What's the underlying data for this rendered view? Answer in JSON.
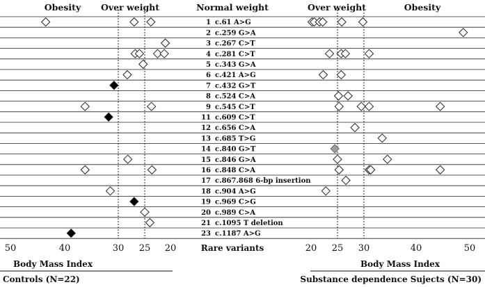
{
  "chart_data": {
    "type": "scatter",
    "headers": {
      "left_obesity": "Obesity",
      "left_overweight": "Over weight",
      "center_normal": "Normal weight",
      "right_overweight": "Over weight",
      "right_obesity": "Obesity"
    },
    "rows": [
      {
        "num": "1",
        "label": "c.61 A>G",
        "controls": [
          {
            "v": 43.5,
            "s": "o"
          },
          {
            "v": 27,
            "s": "o"
          },
          {
            "v": 23.8,
            "s": "o"
          }
        ],
        "cases": [
          {
            "v": 20.2,
            "s": "o"
          },
          {
            "v": 20.6,
            "s": "o"
          },
          {
            "v": 21.6,
            "s": "o"
          },
          {
            "v": 22.2,
            "s": "o"
          },
          {
            "v": 25.8,
            "s": "o"
          },
          {
            "v": 29.8,
            "s": "o"
          }
        ]
      },
      {
        "num": "2",
        "label": "c.259 G>A",
        "controls": [],
        "cases": [
          {
            "v": 48.8,
            "s": "o"
          }
        ]
      },
      {
        "num": "3",
        "label": "c.267 C>T",
        "controls": [
          {
            "v": 21,
            "s": "o"
          }
        ],
        "cases": []
      },
      {
        "num": "4",
        "label": "c.281 C>T",
        "controls": [
          {
            "v": 26.8,
            "s": "o"
          },
          {
            "v": 26,
            "s": "o"
          },
          {
            "v": 22.5,
            "s": "o"
          },
          {
            "v": 21.2,
            "s": "o"
          }
        ],
        "cases": [
          {
            "v": 23.5,
            "s": "o"
          },
          {
            "v": 25.7,
            "s": "o"
          },
          {
            "v": 26.5,
            "s": "o"
          },
          {
            "v": 31,
            "s": "o"
          }
        ]
      },
      {
        "num": "5",
        "label": "c.343 G>A",
        "controls": [
          {
            "v": 25.3,
            "s": "o"
          }
        ],
        "cases": []
      },
      {
        "num": "6",
        "label": "c.421 A>G",
        "controls": [
          {
            "v": 28.3,
            "s": "o"
          }
        ],
        "cases": [
          {
            "v": 22.3,
            "s": "o"
          },
          {
            "v": 25.7,
            "s": "o"
          }
        ]
      },
      {
        "num": "7",
        "label": "c.432 G>T",
        "controls": [
          {
            "v": 30.8,
            "s": "b"
          }
        ],
        "cases": []
      },
      {
        "num": "8",
        "label": "c.524 C>A",
        "controls": [],
        "cases": [
          {
            "v": 25.2,
            "s": "o"
          },
          {
            "v": 27,
            "s": "o"
          }
        ]
      },
      {
        "num": "9",
        "label": "c.545 C>T",
        "controls": [
          {
            "v": 36.2,
            "s": "o"
          },
          {
            "v": 23.7,
            "s": "o"
          }
        ],
        "cases": [
          {
            "v": 25.3,
            "s": "o"
          },
          {
            "v": 29.5,
            "s": "o"
          },
          {
            "v": 31,
            "s": "o"
          },
          {
            "v": 44.5,
            "s": "o"
          }
        ]
      },
      {
        "num": "11",
        "label": "c.609 C>T",
        "controls": [
          {
            "v": 31.8,
            "s": "b"
          }
        ],
        "cases": []
      },
      {
        "num": "12",
        "label": "c.656 C>A",
        "controls": [],
        "cases": [
          {
            "v": 28.3,
            "s": "o"
          }
        ]
      },
      {
        "num": "13",
        "label": "c.685 T>G",
        "controls": [],
        "cases": [
          {
            "v": 33.5,
            "s": "o"
          }
        ]
      },
      {
        "num": "14",
        "label": "c.840 G>T",
        "controls": [],
        "cases": [
          {
            "v": 24.5,
            "s": "g"
          }
        ]
      },
      {
        "num": "15",
        "label": "c.846 G>A",
        "controls": [
          {
            "v": 28.2,
            "s": "o"
          }
        ],
        "cases": [
          {
            "v": 25,
            "s": "o"
          },
          {
            "v": 34.5,
            "s": "o"
          }
        ]
      },
      {
        "num": "16",
        "label": "c.848 C>A",
        "controls": [
          {
            "v": 36.2,
            "s": "o"
          },
          {
            "v": 23.6,
            "s": "o"
          }
        ],
        "cases": [
          {
            "v": 25.3,
            "s": "o"
          },
          {
            "v": 31,
            "s": "o"
          },
          {
            "v": 31.3,
            "s": "o"
          },
          {
            "v": 44.5,
            "s": "o"
          }
        ]
      },
      {
        "num": "17",
        "label": "c.867.868 6-bp insertion",
        "controls": [],
        "cases": [
          {
            "v": 26.6,
            "s": "o"
          }
        ]
      },
      {
        "num": "18",
        "label": "c.904 A>G",
        "controls": [
          {
            "v": 31.5,
            "s": "o"
          }
        ],
        "cases": [
          {
            "v": 22.8,
            "s": "o"
          }
        ]
      },
      {
        "num": "19",
        "label": "c.969 C>G",
        "controls": [
          {
            "v": 27,
            "s": "b"
          }
        ],
        "cases": []
      },
      {
        "num": "20",
        "label": "c.989 C>A",
        "controls": [
          {
            "v": 25,
            "s": "o"
          }
        ],
        "cases": []
      },
      {
        "num": "21",
        "label": "c.1095 T deletion",
        "controls": [
          {
            "v": 24,
            "s": "o"
          }
        ],
        "cases": []
      },
      {
        "num": "23",
        "label": "c.1187 A>G",
        "controls": [
          {
            "v": 38.8,
            "s": "b"
          }
        ],
        "cases": []
      }
    ],
    "left_axis": {
      "ticks": [
        "50",
        "40",
        "30",
        "25",
        "20"
      ],
      "xlabel": "Body Mass Index",
      "group": "Controls (N=22)",
      "dashed": [
        30,
        25
      ]
    },
    "right_axis": {
      "ticks": [
        "20",
        "25",
        "30",
        "40",
        "50"
      ],
      "xlabel": "Body Mass Index",
      "group": "Substance dependence Sujects (N=30)",
      "dashed": [
        25,
        30
      ]
    },
    "center_xlabel": "Rare variants"
  }
}
